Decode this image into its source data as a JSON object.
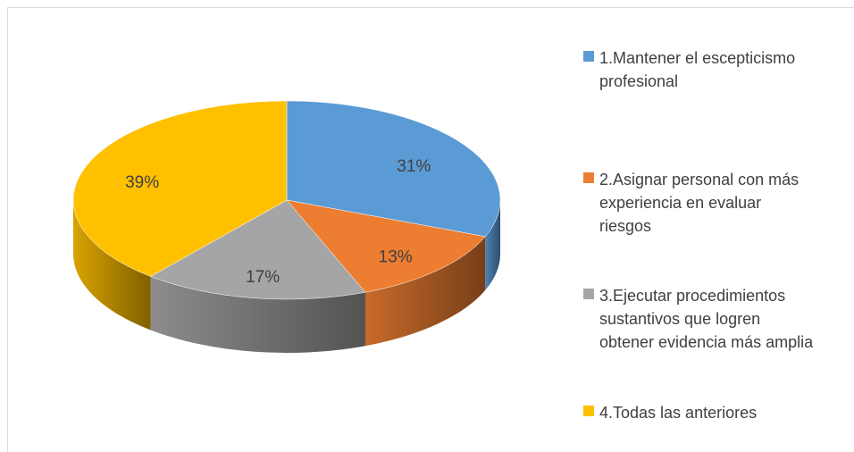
{
  "chart_data": {
    "type": "pie3d",
    "categories": [
      "1.Mantener el escepticismo profesional",
      "2.Asignar personal con más experiencia en evaluar riesgos",
      "3.Ejecutar procedimientos sustantivos que logren obtener evidencia más amplia",
      "4.Todas las anteriores"
    ],
    "values": [
      31,
      13,
      17,
      39
    ],
    "value_labels": [
      "31%",
      "13%",
      "17%",
      "39%"
    ],
    "colors": [
      "#5b9bd5",
      "#ed7d31",
      "#a5a5a5",
      "#ffc000"
    ],
    "legend": "right"
  }
}
